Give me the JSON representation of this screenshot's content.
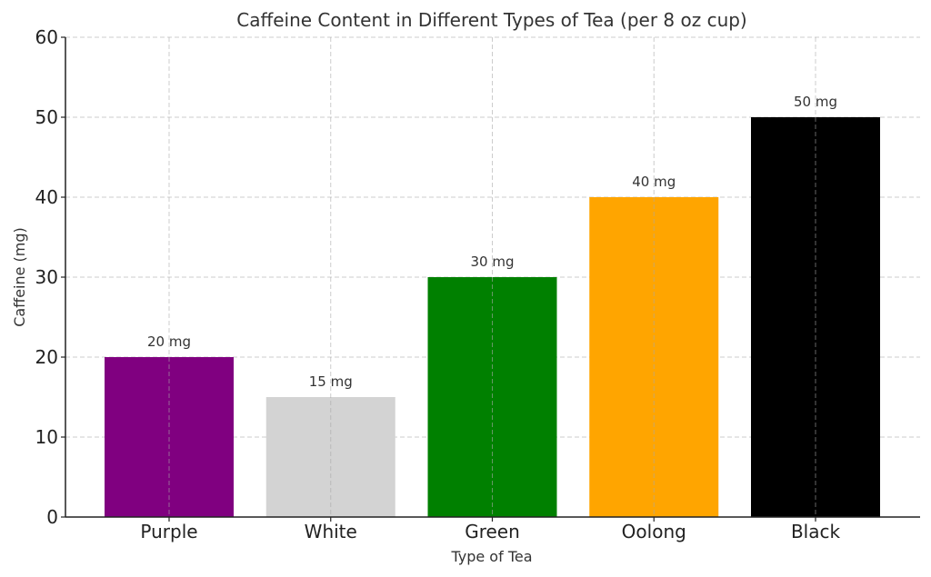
{
  "chart_data": {
    "type": "bar",
    "title": "Caffeine Content in Different Types of Tea (per 8 oz cup)",
    "xlabel": "Type of Tea",
    "ylabel": "Caffeine (mg)",
    "categories": [
      "Purple",
      "White",
      "Green",
      "Oolong",
      "Black"
    ],
    "values": [
      20,
      15,
      30,
      40,
      50
    ],
    "data_labels": [
      "20 mg",
      "15 mg",
      "30 mg",
      "40 mg",
      "50 mg"
    ],
    "colors": [
      "#800080",
      "#d3d3d3",
      "#008000",
      "#ffa500",
      "#000000"
    ],
    "ylim": [
      0,
      60
    ],
    "yticks": [
      0,
      10,
      20,
      30,
      40,
      50,
      60
    ],
    "grid": true,
    "legend": null
  }
}
